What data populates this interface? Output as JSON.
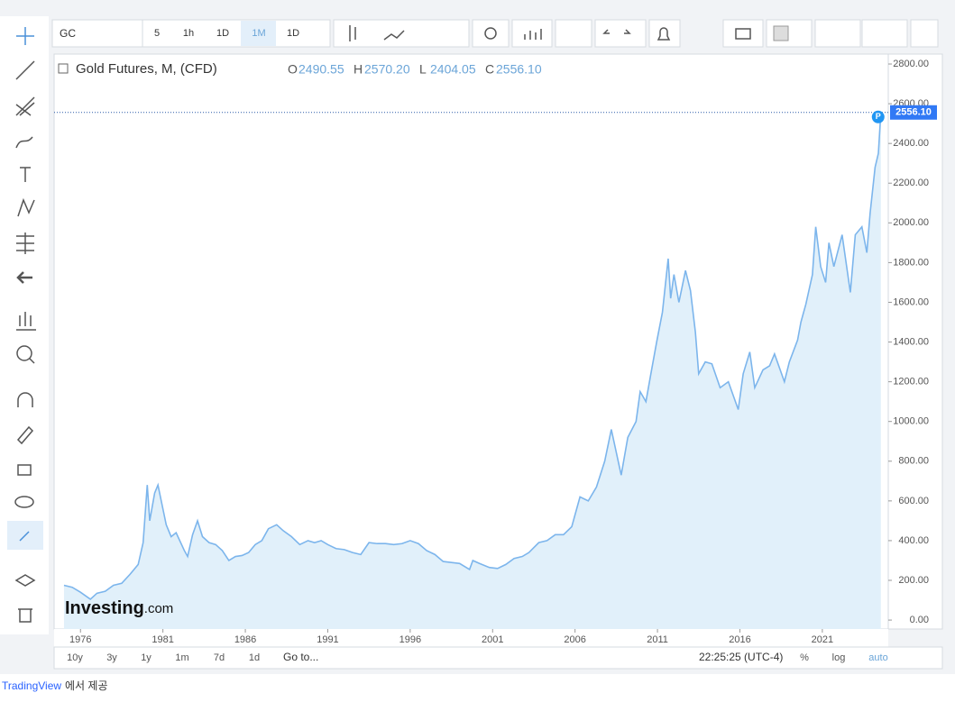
{
  "toolbar": {
    "symbol": "GC",
    "intervals": [
      "5",
      "1h",
      "1D",
      "1M",
      "1D"
    ]
  },
  "legend": {
    "title": "Gold Futures, M, (CFD)",
    "ohlc": [
      {
        "key": "O",
        "value": "2490.55"
      },
      {
        "key": "H",
        "value": "2570.20"
      },
      {
        "key": "L",
        "value": "2404.05"
      },
      {
        "key": "C",
        "value": "2556.10"
      }
    ]
  },
  "chart_data": {
    "type": "area",
    "x": [
      1975.0,
      1975.5,
      1976.0,
      1976.6,
      1977.0,
      1977.5,
      1978.0,
      1978.5,
      1979.0,
      1979.5,
      1979.8,
      1980.05,
      1980.2,
      1980.5,
      1980.7,
      1980.9,
      1981.2,
      1981.5,
      1981.8,
      1982.3,
      1982.5,
      1982.8,
      1983.1,
      1983.4,
      1983.8,
      1984.2,
      1984.6,
      1985.0,
      1985.4,
      1985.8,
      1986.2,
      1986.6,
      1987.0,
      1987.4,
      1987.9,
      1988.3,
      1988.8,
      1989.3,
      1989.8,
      1990.2,
      1990.6,
      1991.0,
      1991.5,
      1992.0,
      1992.5,
      1993.0,
      1993.5,
      1994.0,
      1994.5,
      1995.0,
      1995.5,
      1996.0,
      1996.5,
      1997.0,
      1997.5,
      1998.0,
      1998.5,
      1999.0,
      1999.6,
      1999.8,
      2000.2,
      2000.8,
      2001.3,
      2001.8,
      2002.3,
      2002.8,
      2003.2,
      2003.8,
      2004.3,
      2004.8,
      2005.3,
      2005.8,
      2006.3,
      2006.8,
      2007.3,
      2007.8,
      2008.2,
      2008.8,
      2009.2,
      2009.7,
      2009.95,
      2010.3,
      2010.6,
      2010.95,
      2011.3,
      2011.65,
      2011.8,
      2012.0,
      2012.3,
      2012.7,
      2013.0,
      2013.3,
      2013.5,
      2013.9,
      2014.3,
      2014.8,
      2015.3,
      2015.9,
      2016.2,
      2016.6,
      2016.9,
      2017.4,
      2017.8,
      2018.1,
      2018.7,
      2019.0,
      2019.5,
      2019.7,
      2020.0,
      2020.4,
      2020.6,
      2020.9,
      2021.2,
      2021.4,
      2021.7,
      2022.2,
      2022.7,
      2023.0,
      2023.4,
      2023.7,
      2023.9,
      2024.2,
      2024.4,
      2024.55
    ],
    "series": [
      {
        "name": "Gold Futures",
        "color": "#7cb5ec",
        "fill": "#e1f0fa",
        "values": [
          175,
          165,
          140,
          105,
          135,
          145,
          175,
          185,
          230,
          280,
          390,
          680,
          500,
          640,
          680,
          600,
          480,
          420,
          440,
          350,
          320,
          430,
          500,
          420,
          390,
          380,
          350,
          300,
          320,
          325,
          340,
          380,
          400,
          460,
          480,
          450,
          420,
          380,
          400,
          390,
          400,
          380,
          360,
          355,
          340,
          330,
          390,
          385,
          385,
          380,
          385,
          400,
          385,
          350,
          330,
          295,
          290,
          285,
          255,
          300,
          285,
          265,
          260,
          280,
          310,
          320,
          340,
          390,
          400,
          430,
          430,
          470,
          620,
          600,
          670,
          800,
          960,
          730,
          920,
          1000,
          1150,
          1100,
          1240,
          1400,
          1550,
          1820,
          1620,
          1740,
          1600,
          1760,
          1660,
          1450,
          1240,
          1300,
          1290,
          1170,
          1200,
          1060,
          1240,
          1350,
          1170,
          1260,
          1280,
          1340,
          1200,
          1300,
          1410,
          1500,
          1590,
          1740,
          1980,
          1780,
          1700,
          1900,
          1780,
          1940,
          1650,
          1940,
          1980,
          1850,
          2050,
          2280,
          2350,
          2556.1
        ]
      }
    ],
    "xlim": [
      1974.4,
      2025.0
    ],
    "xticks": [
      1976,
      1981,
      1986,
      1991,
      1996,
      2001,
      2006,
      2011,
      2016,
      2021
    ],
    "ylim": [
      -45,
      2850
    ],
    "yticks": [
      {
        "value": 0,
        "label": "0.00"
      },
      {
        "value": 200,
        "label": "200.00"
      },
      {
        "value": 400,
        "label": "400.00"
      },
      {
        "value": 600,
        "label": "600.00"
      },
      {
        "value": 800,
        "label": "800.00"
      },
      {
        "value": 1000,
        "label": "1000.00"
      },
      {
        "value": 1200,
        "label": "1200.00"
      },
      {
        "value": 1400,
        "label": "1400.00"
      },
      {
        "value": 1600,
        "label": "1600.00"
      },
      {
        "value": 1800,
        "label": "1800.00"
      },
      {
        "value": 2000,
        "label": "2000.00"
      },
      {
        "value": 2200,
        "label": "2200.00"
      },
      {
        "value": 2400,
        "label": "2400.00"
      },
      {
        "value": 2600,
        "label": "2600.00"
      },
      {
        "value": 2800,
        "label": "2800.00"
      }
    ],
    "grid": false,
    "price_line": {
      "value": 2556.1,
      "label": "2556.10",
      "badge": "P"
    }
  },
  "watermark": {
    "brand": "Investing",
    "suffix": ".com"
  },
  "bottom_bar": {
    "ranges": [
      "10y",
      "3y",
      "1y",
      "1m",
      "7d",
      "1d"
    ],
    "goto": "Go to...",
    "time": "22:25:25 (UTC-4)",
    "options": [
      "%",
      "log",
      "auto"
    ]
  },
  "footer": {
    "link": "TradingView",
    "text": "에서 제공"
  }
}
